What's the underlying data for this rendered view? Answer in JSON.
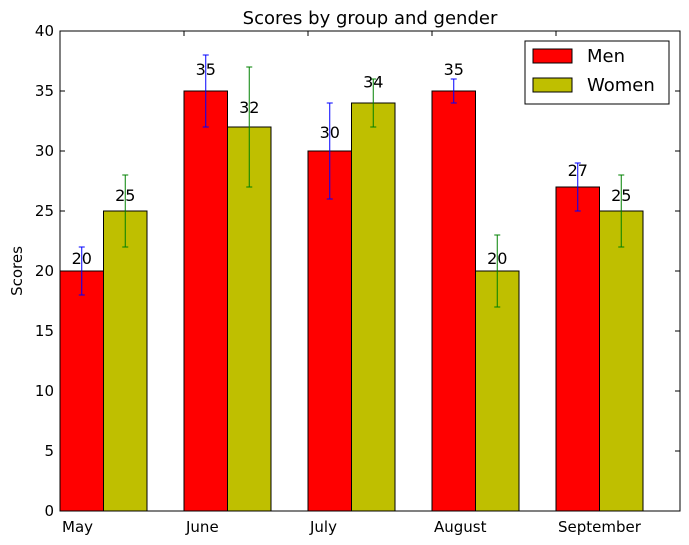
{
  "chart_data": {
    "type": "bar",
    "title": "Scores by group and gender",
    "xlabel": "",
    "ylabel": "Scores",
    "ylim": [
      0,
      40
    ],
    "yticks": [
      0,
      5,
      10,
      15,
      20,
      25,
      30,
      35,
      40
    ],
    "categories": [
      "May",
      "June",
      "July",
      "August",
      "September"
    ],
    "series": [
      {
        "name": "Men",
        "color": "#ff0000",
        "error_color": "#0000ff",
        "values": [
          20,
          35,
          30,
          35,
          27
        ],
        "errors": [
          2,
          3,
          4,
          1,
          2
        ],
        "labels": [
          "20",
          "35",
          "30",
          "35",
          "27"
        ]
      },
      {
        "name": "Women",
        "color": "#bfbf00",
        "error_color": "#008000",
        "values": [
          25,
          32,
          34,
          20,
          25
        ],
        "errors": [
          3,
          5,
          2,
          3,
          3
        ],
        "labels": [
          "25",
          "32",
          "34",
          "20",
          "25"
        ]
      }
    ],
    "legend_position": "top-right",
    "grid": false
  }
}
